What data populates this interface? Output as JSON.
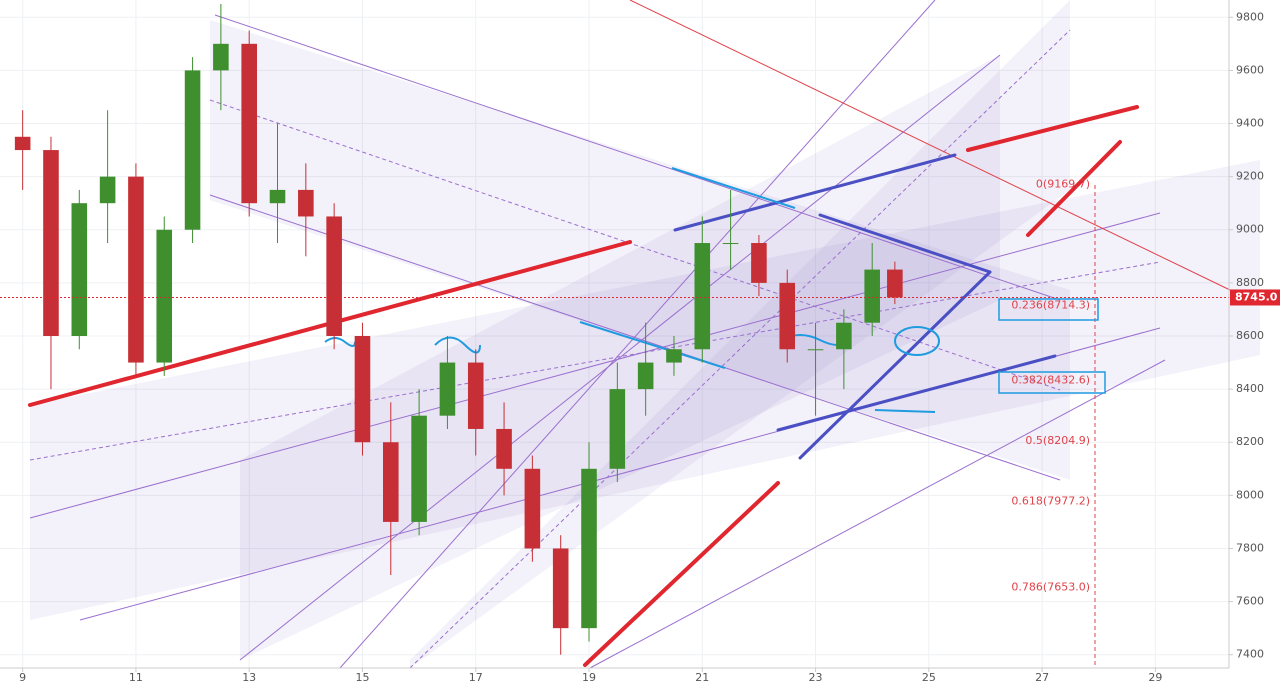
{
  "chart_data": {
    "type": "candlestick",
    "x": [
      9.0,
      9.5,
      10.0,
      10.5,
      11.0,
      11.5,
      12.0,
      12.5,
      13.0,
      13.5,
      14.0,
      14.5,
      15.0,
      15.5,
      16.0,
      16.5,
      17.0,
      17.5,
      18.0,
      18.5,
      19.0,
      19.5,
      20.0,
      20.5,
      21.0,
      21.5,
      22.0,
      22.5,
      23.0,
      23.5,
      24.0,
      24.4
    ],
    "open": [
      9350,
      9300,
      8600,
      9100,
      9200,
      8500,
      9000,
      9600,
      9700,
      9100,
      9150,
      9050,
      8600,
      8200,
      7900,
      8300,
      8500,
      8250,
      8100,
      7800,
      7500,
      8100,
      8400,
      8500,
      8550,
      8950,
      8950,
      8800,
      8550,
      8550,
      8650,
      8850
    ],
    "high": [
      9450,
      9350,
      9150,
      9450,
      9250,
      9050,
      9650,
      9850,
      9750,
      9400,
      9250,
      9100,
      8650,
      8350,
      8400,
      8600,
      8550,
      8350,
      8150,
      7850,
      8200,
      8500,
      8650,
      8600,
      9050,
      9150,
      8980,
      8850,
      8650,
      8700,
      8950,
      8880
    ],
    "low": [
      9150,
      8400,
      8550,
      8950,
      8450,
      8450,
      8950,
      9450,
      9050,
      8950,
      8900,
      8550,
      8150,
      7700,
      7850,
      8250,
      8150,
      8000,
      7750,
      7400,
      7450,
      8050,
      8300,
      8450,
      8500,
      8850,
      8750,
      8500,
      8300,
      8400,
      8600,
      8720
    ],
    "close": [
      9300,
      8600,
      9100,
      9200,
      8500,
      9000,
      9600,
      9700,
      9100,
      9150,
      9050,
      8600,
      8200,
      7900,
      8300,
      8500,
      8250,
      8100,
      7800,
      7500,
      8100,
      8400,
      8500,
      8550,
      8950,
      8950,
      8800,
      8550,
      8550,
      8650,
      8850,
      8745
    ],
    "up_color": "#3f8f2f",
    "down_color": "#c62f35",
    "xlim": [
      8.6,
      30.3
    ],
    "xticks": [
      9,
      11,
      13,
      15,
      17,
      19,
      21,
      23,
      25,
      27,
      29
    ],
    "ylim": [
      7350,
      9865
    ],
    "yticks": [
      7400,
      7600,
      7800,
      8000,
      8200,
      8400,
      8600,
      8800,
      9000,
      9200,
      9400,
      9600,
      9800
    ],
    "grid": true,
    "last_price": 8745,
    "last_price_label": "8745.0",
    "annotations": [
      {
        "text": "0(9169.7)",
        "value": 9169.7
      },
      {
        "text": "0.236(8714.3)",
        "value": 8714.3
      },
      {
        "text": "0.382(8432.6)",
        "value": 8432.6
      },
      {
        "text": "0.5(8204.9)",
        "value": 8204.9
      },
      {
        "text": "0.618(7977.2)",
        "value": 7977.2
      },
      {
        "text": "0.786(7653.0)",
        "value": 7653.0
      }
    ]
  }
}
